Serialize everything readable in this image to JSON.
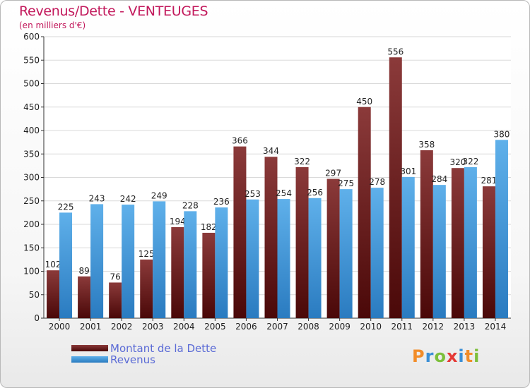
{
  "title": "Revenus/Dette - VENTEUGES",
  "subtitle": "(en milliers d'€)",
  "logo": {
    "letters": [
      "P",
      "r",
      "o",
      "x",
      "i",
      "t",
      "i"
    ],
    "colors": [
      "#f28c28",
      "#3a8fd6",
      "#7cbf3a",
      "#e53935",
      "#3a8fd6",
      "#f28c28",
      "#7cbf3a"
    ]
  },
  "colors": {
    "dette_top": "#8b3a3a",
    "dette_bottom": "#4a0808",
    "revenus_top": "#5fb0ea",
    "revenus_bottom": "#2a7bc0"
  },
  "chart_data": {
    "type": "bar",
    "title": "Revenus/Dette - VENTEUGES",
    "subtitle": "(en milliers d'€)",
    "categories": [
      "2000",
      "2001",
      "2002",
      "2003",
      "2004",
      "2005",
      "2006",
      "2007",
      "2008",
      "2009",
      "2010",
      "2011",
      "2012",
      "2013",
      "2014"
    ],
    "series": [
      {
        "name": "Montant de la Dette",
        "values": [
          102,
          89,
          76,
          125,
          194,
          182,
          366,
          344,
          322,
          297,
          450,
          556,
          358,
          320,
          281
        ]
      },
      {
        "name": "Revenus",
        "values": [
          225,
          243,
          242,
          249,
          228,
          236,
          253,
          254,
          256,
          275,
          278,
          301,
          284,
          322,
          380
        ]
      }
    ],
    "ylim": [
      0,
      600
    ],
    "yticks": [
      0,
      50,
      100,
      150,
      200,
      250,
      300,
      350,
      400,
      450,
      500,
      550,
      600
    ],
    "grid": true,
    "legend": "bottom-left"
  }
}
